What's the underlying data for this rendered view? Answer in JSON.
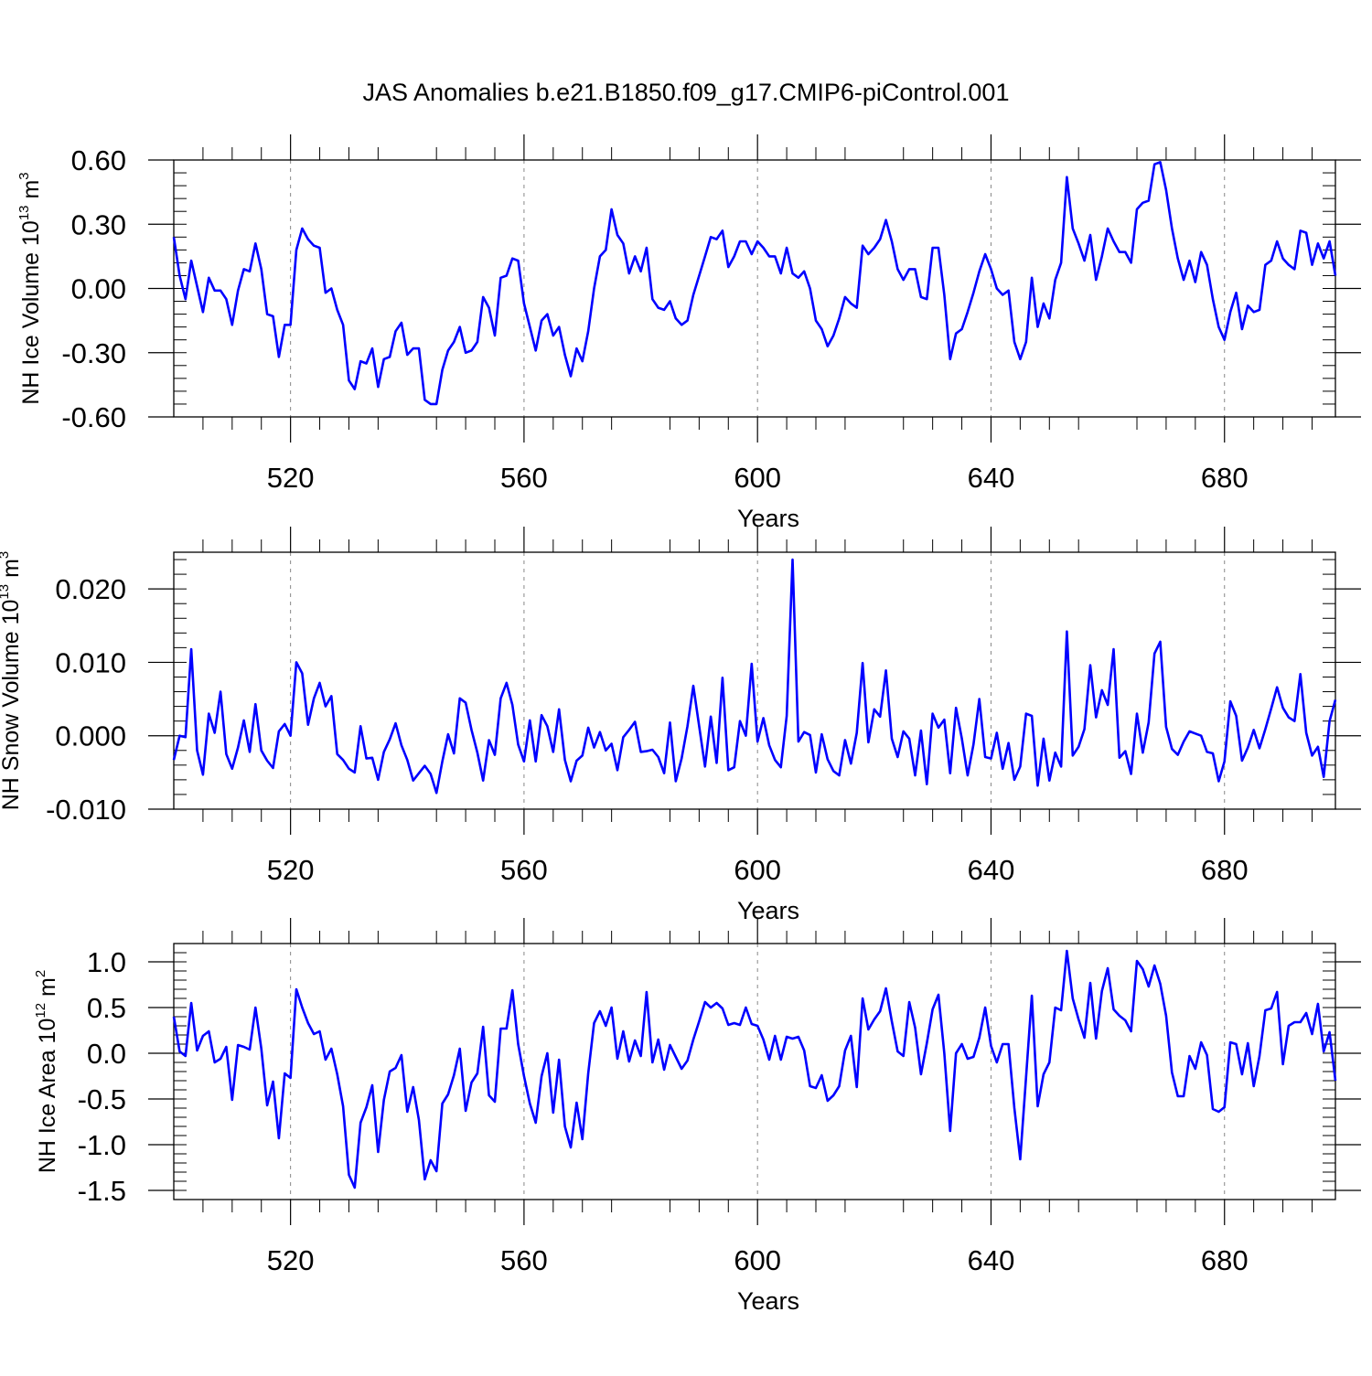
{
  "title": "JAS Anomalies b.e21.B1850.f09_g17.CMIP6-piControl.001",
  "colors": {
    "series": "#0000ff",
    "axis": "#000000",
    "grid": "#888888"
  },
  "chart_data": [
    {
      "type": "line",
      "ylabel": {
        "base": "NH Ice Volume 10",
        "exponent": "13",
        "unit": " m",
        "unit_exponent": "3"
      },
      "xlabel": "Years",
      "xlim": [
        500,
        699
      ],
      "ylim": [
        -0.6,
        0.6
      ],
      "x_ticks": [
        520,
        560,
        600,
        640,
        680
      ],
      "x_tick_labels": [
        "520",
        "560",
        "600",
        "640",
        "680"
      ],
      "y_ticks": [
        -0.6,
        -0.3,
        0.0,
        0.3,
        0.6
      ],
      "y_tick_labels": [
        "-0.60",
        "-0.30",
        "0.00",
        "0.30",
        "0.60"
      ],
      "y_minor_step": 0.06,
      "grid_x": [
        520,
        560,
        600,
        640,
        680
      ],
      "x": [
        500,
        501,
        502,
        503,
        504,
        505,
        506,
        507,
        508,
        509,
        510,
        511,
        512,
        513,
        514,
        515,
        516,
        517,
        518,
        519,
        520,
        521,
        522,
        523,
        524,
        525,
        526,
        527,
        528,
        529,
        530,
        531,
        532,
        533,
        534,
        535,
        536,
        537,
        538,
        539,
        540,
        541,
        542,
        543,
        544,
        545,
        546,
        547,
        548,
        549,
        550,
        551,
        552,
        553,
        554,
        555,
        556,
        557,
        558,
        559,
        560,
        561,
        562,
        563,
        564,
        565,
        566,
        567,
        568,
        569,
        570,
        571,
        572,
        573,
        574,
        575,
        576,
        577,
        578,
        579,
        580,
        581,
        582,
        583,
        584,
        585,
        586,
        587,
        588,
        589,
        590,
        591,
        592,
        593,
        594,
        595,
        596,
        597,
        598,
        599,
        600,
        601,
        602,
        603,
        604,
        605,
        606,
        607,
        608,
        609,
        610,
        611,
        612,
        613,
        614,
        615,
        616,
        617,
        618,
        619,
        620,
        621,
        622,
        623,
        624,
        625,
        626,
        627,
        628,
        629,
        630,
        631,
        632,
        633,
        634,
        635,
        636,
        637,
        638,
        639,
        640,
        641,
        642,
        643,
        644,
        645,
        646,
        647,
        648,
        649,
        650,
        651,
        652,
        653,
        654,
        655,
        656,
        657,
        658,
        659,
        660,
        661,
        662,
        663,
        664,
        665,
        666,
        667,
        668,
        669,
        670,
        671,
        672,
        673,
        674,
        675,
        676,
        677,
        678,
        679,
        680,
        681,
        682,
        683,
        684,
        685,
        686,
        687,
        688,
        689,
        690,
        691,
        692,
        693,
        694,
        695,
        696,
        697,
        698,
        699
      ],
      "values": [
        0.24,
        0.06,
        -0.05,
        0.13,
        0.01,
        -0.11,
        0.05,
        -0.01,
        -0.01,
        -0.05,
        -0.17,
        -0.01,
        0.09,
        0.08,
        0.21,
        0.09,
        -0.12,
        -0.13,
        -0.32,
        -0.17,
        -0.17,
        0.18,
        0.28,
        0.23,
        0.2,
        0.19,
        -0.02,
        0.0,
        -0.1,
        -0.17,
        -0.43,
        -0.47,
        -0.34,
        -0.35,
        -0.28,
        -0.46,
        -0.33,
        -0.32,
        -0.2,
        -0.16,
        -0.31,
        -0.28,
        -0.28,
        -0.52,
        -0.54,
        -0.54,
        -0.38,
        -0.29,
        -0.25,
        -0.18,
        -0.3,
        -0.29,
        -0.25,
        -0.04,
        -0.09,
        -0.22,
        0.05,
        0.06,
        0.14,
        0.13,
        -0.07,
        -0.18,
        -0.29,
        -0.15,
        -0.12,
        -0.22,
        -0.18,
        -0.31,
        -0.41,
        -0.28,
        -0.34,
        -0.2,
        0.0,
        0.15,
        0.18,
        0.37,
        0.25,
        0.21,
        0.07,
        0.15,
        0.08,
        0.19,
        -0.05,
        -0.09,
        -0.1,
        -0.06,
        -0.14,
        -0.17,
        -0.15,
        -0.03,
        0.06,
        0.15,
        0.24,
        0.23,
        0.27,
        0.1,
        0.15,
        0.22,
        0.22,
        0.16,
        0.22,
        0.19,
        0.15,
        0.15,
        0.07,
        0.19,
        0.07,
        0.05,
        0.08,
        0.0,
        -0.15,
        -0.19,
        -0.27,
        -0.22,
        -0.14,
        -0.04,
        -0.07,
        -0.09,
        0.2,
        0.16,
        0.19,
        0.23,
        0.32,
        0.22,
        0.09,
        0.04,
        0.09,
        0.09,
        -0.04,
        -0.05,
        0.19,
        0.19,
        -0.03,
        -0.33,
        -0.21,
        -0.19,
        -0.11,
        -0.02,
        0.08,
        0.16,
        0.09,
        0.0,
        -0.03,
        -0.01,
        -0.25,
        -0.33,
        -0.25,
        0.05,
        -0.18,
        -0.07,
        -0.14,
        0.04,
        0.12,
        0.52,
        0.28,
        0.21,
        0.13,
        0.25,
        0.04,
        0.15,
        0.28,
        0.22,
        0.17,
        0.17,
        0.12,
        0.37,
        0.4,
        0.41,
        0.58,
        0.59,
        0.46,
        0.28,
        0.14,
        0.04,
        0.13,
        0.03,
        0.17,
        0.11,
        -0.05,
        -0.18,
        -0.24,
        -0.11,
        -0.02,
        -0.19,
        -0.08,
        -0.11,
        -0.1,
        0.11,
        0.13,
        0.22,
        0.14,
        0.11,
        0.09,
        0.27,
        0.26,
        0.11,
        0.21,
        0.14,
        0.22,
        0.06
      ]
    },
    {
      "type": "line",
      "ylabel": {
        "base": "NH Snow Volume 10",
        "exponent": "13",
        "unit": " m",
        "unit_exponent": "3"
      },
      "xlabel": "Years",
      "xlim": [
        500,
        699
      ],
      "ylim": [
        -0.01,
        0.025
      ],
      "x_ticks": [
        520,
        560,
        600,
        640,
        680
      ],
      "x_tick_labels": [
        "520",
        "560",
        "600",
        "640",
        "680"
      ],
      "y_ticks": [
        -0.01,
        0.0,
        0.01,
        0.02
      ],
      "y_tick_labels": [
        "-0.010",
        "0.000",
        "0.010",
        "0.020"
      ],
      "y_minor_step": 0.002,
      "grid_x": [
        520,
        560,
        600,
        640,
        680
      ],
      "x": [
        500,
        501,
        502,
        503,
        504,
        505,
        506,
        507,
        508,
        509,
        510,
        511,
        512,
        513,
        514,
        515,
        516,
        517,
        518,
        519,
        520,
        521,
        522,
        523,
        524,
        525,
        526,
        527,
        528,
        529,
        530,
        531,
        532,
        533,
        534,
        535,
        536,
        537,
        538,
        539,
        540,
        541,
        542,
        543,
        544,
        545,
        546,
        547,
        548,
        549,
        550,
        551,
        552,
        553,
        554,
        555,
        556,
        557,
        558,
        559,
        560,
        561,
        562,
        563,
        564,
        565,
        566,
        567,
        568,
        569,
        570,
        571,
        572,
        573,
        574,
        575,
        576,
        577,
        578,
        579,
        580,
        581,
        582,
        583,
        584,
        585,
        586,
        587,
        588,
        589,
        590,
        591,
        592,
        593,
        594,
        595,
        596,
        597,
        598,
        599,
        600,
        601,
        602,
        603,
        604,
        605,
        606,
        607,
        608,
        609,
        610,
        611,
        612,
        613,
        614,
        615,
        616,
        617,
        618,
        619,
        620,
        621,
        622,
        623,
        624,
        625,
        626,
        627,
        628,
        629,
        630,
        631,
        632,
        633,
        634,
        635,
        636,
        637,
        638,
        639,
        640,
        641,
        642,
        643,
        644,
        645,
        646,
        647,
        648,
        649,
        650,
        651,
        652,
        653,
        654,
        655,
        656,
        657,
        658,
        659,
        660,
        661,
        662,
        663,
        664,
        665,
        666,
        667,
        668,
        669,
        670,
        671,
        672,
        673,
        674,
        675,
        676,
        677,
        678,
        679,
        680,
        681,
        682,
        683,
        684,
        685,
        686,
        687,
        688,
        689,
        690,
        691,
        692,
        693,
        694,
        695,
        696,
        697,
        698,
        699
      ],
      "values": [
        -0.0033,
        0.0,
        -0.0002,
        0.0118,
        -0.002,
        -0.0053,
        0.003,
        0.0004,
        0.006,
        -0.0025,
        -0.0045,
        -0.0016,
        0.0021,
        -0.0022,
        0.0043,
        -0.002,
        -0.0034,
        -0.0044,
        0.0006,
        0.0016,
        0.0,
        0.01,
        0.0085,
        0.0015,
        0.0051,
        0.0072,
        0.004,
        0.0054,
        -0.0025,
        -0.0033,
        -0.0045,
        -0.005,
        0.0013,
        -0.0031,
        -0.003,
        -0.006,
        -0.0022,
        -0.0005,
        0.0017,
        -0.0013,
        -0.0033,
        -0.0061,
        -0.0051,
        -0.0041,
        -0.0052,
        -0.0078,
        -0.0035,
        0.0002,
        -0.0024,
        0.0051,
        0.0045,
        0.0008,
        -0.0023,
        -0.0061,
        -0.0006,
        -0.0026,
        0.0051,
        0.0072,
        0.0042,
        -0.0012,
        -0.0035,
        0.0021,
        -0.0035,
        0.0028,
        0.0013,
        -0.0022,
        0.0036,
        -0.0033,
        -0.0062,
        -0.0034,
        -0.0027,
        0.0011,
        -0.0016,
        0.0005,
        -0.002,
        -0.0011,
        -0.0047,
        -0.0002,
        0.0008,
        0.0019,
        -0.0022,
        -0.0021,
        -0.0019,
        -0.0029,
        -0.0051,
        0.0018,
        -0.0062,
        -0.0031,
        0.0013,
        0.0068,
        0.0013,
        -0.0042,
        0.0026,
        -0.0037,
        0.0079,
        -0.0047,
        -0.0043,
        0.002,
        0.0,
        0.0098,
        -0.0008,
        0.0024,
        -0.0013,
        -0.0033,
        -0.0043,
        0.0027,
        0.024,
        -0.0008,
        0.0005,
        0.0001,
        -0.005,
        0.0002,
        -0.0032,
        -0.0048,
        -0.0054,
        -0.0006,
        -0.0038,
        0.0004,
        0.0099,
        -0.0009,
        0.0036,
        0.0026,
        0.0089,
        -0.0004,
        -0.0029,
        0.0006,
        -0.0004,
        -0.0054,
        0.0007,
        -0.0066,
        0.003,
        0.0011,
        0.0022,
        -0.0051,
        0.0038,
        -0.0004,
        -0.0054,
        -0.0012,
        0.005,
        -0.0029,
        -0.0031,
        0.0004,
        -0.0045,
        -0.001,
        -0.006,
        -0.0042,
        0.003,
        0.0027,
        -0.0068,
        -0.0004,
        -0.0061,
        -0.0023,
        -0.0042,
        0.0142,
        -0.0027,
        -0.0015,
        0.0009,
        0.0096,
        0.0025,
        0.0062,
        0.0042,
        0.0118,
        -0.003,
        -0.0021,
        -0.0052,
        0.003,
        -0.0023,
        0.0018,
        0.0112,
        0.0128,
        0.0012,
        -0.0018,
        -0.0026,
        -0.0008,
        0.0006,
        0.0003,
        0.0,
        -0.0022,
        -0.0024,
        -0.0062,
        -0.0035,
        0.0047,
        0.0027,
        -0.0034,
        -0.0016,
        0.0008,
        -0.0017,
        0.0009,
        0.0037,
        0.0066,
        0.0038,
        0.0025,
        0.002,
        0.0084,
        0.0004,
        -0.0027,
        -0.0015,
        -0.0056,
        0.002,
        0.0049
      ]
    },
    {
      "type": "line",
      "ylabel": {
        "base": "NH Ice Area 10",
        "exponent": "12",
        "unit": " m",
        "unit_exponent": "2"
      },
      "xlabel": "Years",
      "xlim": [
        500,
        699
      ],
      "ylim": [
        -1.6,
        1.2
      ],
      "x_ticks": [
        520,
        560,
        600,
        640,
        680
      ],
      "x_tick_labels": [
        "520",
        "560",
        "600",
        "640",
        "680"
      ],
      "y_ticks": [
        -1.5,
        -1.0,
        -0.5,
        0.0,
        0.5,
        1.0
      ],
      "y_tick_labels": [
        "-1.5",
        "-1.0",
        "-0.5",
        "0.0",
        "0.5",
        "1.0"
      ],
      "y_minor_step": 0.1,
      "grid_x": [
        520,
        560,
        600,
        640,
        680
      ],
      "x": [
        500,
        501,
        502,
        503,
        504,
        505,
        506,
        507,
        508,
        509,
        510,
        511,
        512,
        513,
        514,
        515,
        516,
        517,
        518,
        519,
        520,
        521,
        522,
        523,
        524,
        525,
        526,
        527,
        528,
        529,
        530,
        531,
        532,
        533,
        534,
        535,
        536,
        537,
        538,
        539,
        540,
        541,
        542,
        543,
        544,
        545,
        546,
        547,
        548,
        549,
        550,
        551,
        552,
        553,
        554,
        555,
        556,
        557,
        558,
        559,
        560,
        561,
        562,
        563,
        564,
        565,
        566,
        567,
        568,
        569,
        570,
        571,
        572,
        573,
        574,
        575,
        576,
        577,
        578,
        579,
        580,
        581,
        582,
        583,
        584,
        585,
        586,
        587,
        588,
        589,
        590,
        591,
        592,
        593,
        594,
        595,
        596,
        597,
        598,
        599,
        600,
        601,
        602,
        603,
        604,
        605,
        606,
        607,
        608,
        609,
        610,
        611,
        612,
        613,
        614,
        615,
        616,
        617,
        618,
        619,
        620,
        621,
        622,
        623,
        624,
        625,
        626,
        627,
        628,
        629,
        630,
        631,
        632,
        633,
        634,
        635,
        636,
        637,
        638,
        639,
        640,
        641,
        642,
        643,
        644,
        645,
        646,
        647,
        648,
        649,
        650,
        651,
        652,
        653,
        654,
        655,
        656,
        657,
        658,
        659,
        660,
        661,
        662,
        663,
        664,
        665,
        666,
        667,
        668,
        669,
        670,
        671,
        672,
        673,
        674,
        675,
        676,
        677,
        678,
        679,
        680,
        681,
        682,
        683,
        684,
        685,
        686,
        687,
        688,
        689,
        690,
        691,
        692,
        693,
        694,
        695,
        696,
        697,
        698,
        699
      ],
      "values": [
        0.4,
        0.02,
        -0.03,
        0.55,
        0.03,
        0.19,
        0.24,
        -0.1,
        -0.06,
        0.07,
        -0.51,
        0.09,
        0.07,
        0.04,
        0.5,
        0.05,
        -0.57,
        -0.31,
        -0.93,
        -0.22,
        -0.27,
        0.7,
        0.5,
        0.33,
        0.21,
        0.24,
        -0.07,
        0.05,
        -0.23,
        -0.58,
        -1.33,
        -1.47,
        -0.76,
        -0.59,
        -0.35,
        -1.08,
        -0.51,
        -0.2,
        -0.16,
        -0.02,
        -0.64,
        -0.37,
        -0.73,
        -1.38,
        -1.17,
        -1.29,
        -0.55,
        -0.45,
        -0.24,
        0.05,
        -0.63,
        -0.32,
        -0.22,
        0.29,
        -0.46,
        -0.53,
        0.27,
        0.27,
        0.69,
        0.1,
        -0.25,
        -0.55,
        -0.76,
        -0.25,
        0.0,
        -0.65,
        -0.07,
        -0.8,
        -1.03,
        -0.54,
        -0.94,
        -0.22,
        0.33,
        0.46,
        0.3,
        0.5,
        -0.06,
        0.24,
        -0.09,
        0.14,
        -0.03,
        0.67,
        -0.1,
        0.15,
        -0.18,
        0.09,
        -0.04,
        -0.17,
        -0.08,
        0.15,
        0.35,
        0.56,
        0.5,
        0.55,
        0.49,
        0.31,
        0.33,
        0.31,
        0.5,
        0.32,
        0.3,
        0.15,
        -0.07,
        0.19,
        -0.07,
        0.18,
        0.16,
        0.18,
        0.03,
        -0.36,
        -0.38,
        -0.24,
        -0.52,
        -0.46,
        -0.36,
        0.03,
        0.19,
        -0.37,
        0.6,
        0.26,
        0.37,
        0.46,
        0.71,
        0.35,
        0.02,
        -0.03,
        0.56,
        0.28,
        -0.23,
        0.11,
        0.48,
        0.64,
        0.0,
        -0.85,
        0.0,
        0.1,
        -0.06,
        -0.04,
        0.17,
        0.5,
        0.08,
        -0.1,
        0.1,
        0.1,
        -0.6,
        -1.16,
        -0.26,
        0.63,
        -0.58,
        -0.23,
        -0.1,
        0.5,
        0.47,
        1.12,
        0.6,
        0.37,
        0.17,
        0.77,
        0.16,
        0.68,
        0.93,
        0.48,
        0.41,
        0.36,
        0.24,
        1.01,
        0.92,
        0.73,
        0.96,
        0.76,
        0.41,
        -0.21,
        -0.47,
        -0.47,
        -0.03,
        -0.17,
        0.12,
        -0.02,
        -0.61,
        -0.64,
        -0.59,
        0.12,
        0.1,
        -0.23,
        0.11,
        -0.36,
        -0.03,
        0.47,
        0.49,
        0.67,
        -0.12,
        0.3,
        0.34,
        0.34,
        0.44,
        0.21,
        0.54,
        0.02,
        0.23,
        -0.3
      ]
    }
  ]
}
